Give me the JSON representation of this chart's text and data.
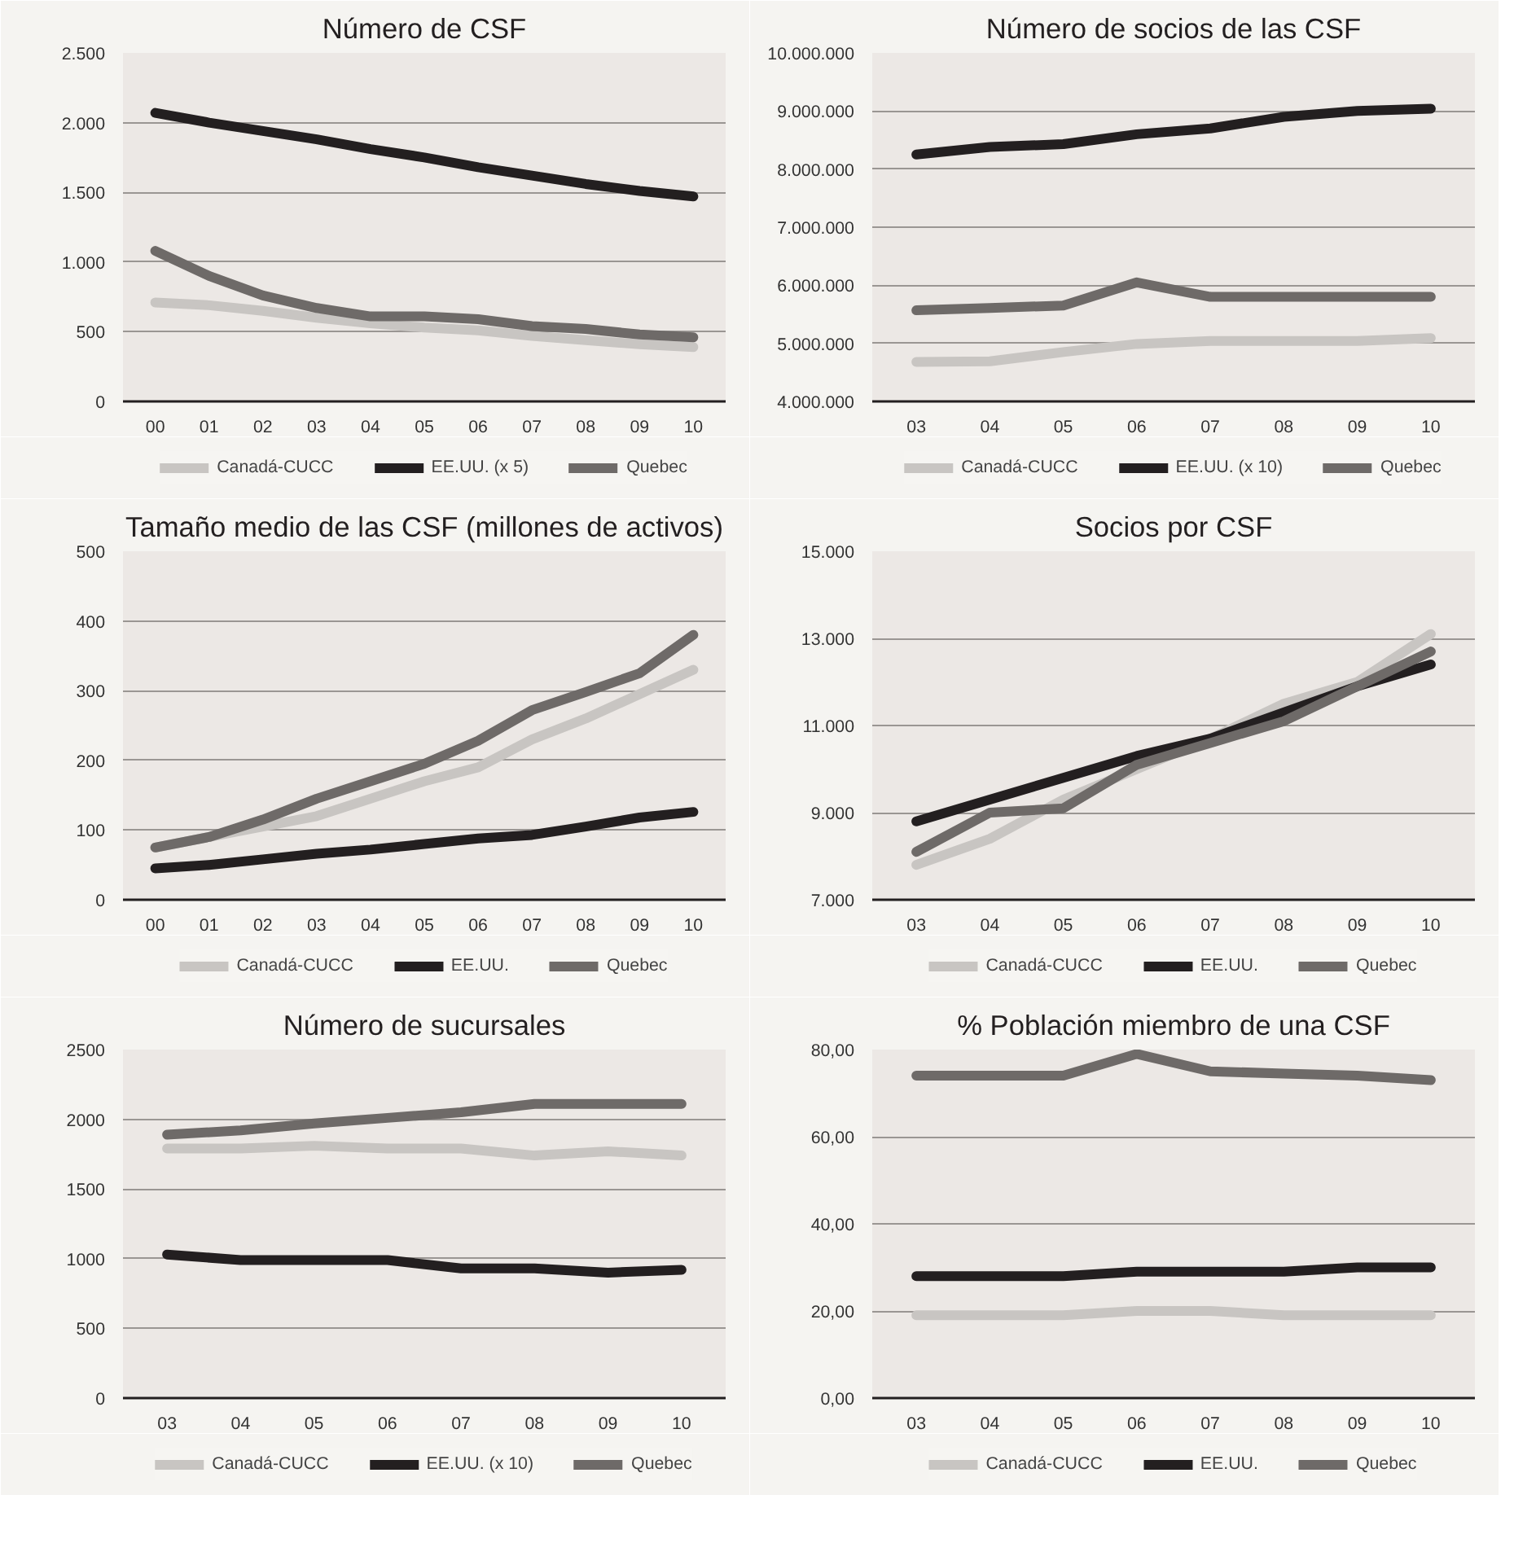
{
  "chart_data": [
    {
      "type": "line",
      "title": "Número de CSF",
      "categories": [
        "00",
        "01",
        "02",
        "03",
        "04",
        "05",
        "06",
        "07",
        "08",
        "09",
        "10"
      ],
      "ylim": [
        0,
        2500
      ],
      "yticks": [
        0,
        500,
        {
          "value": 1000,
          "label": "1.000"
        },
        {
          "value": 1500,
          "label": "1.500"
        },
        {
          "value": 2000,
          "label": "2.000"
        },
        {
          "value": 2500,
          "label": "2.500"
        }
      ],
      "grid": "y",
      "legend": "bottom",
      "line_style": "solid",
      "marker": "none",
      "series": [
        {
          "name": "Canadá-CUCC",
          "color": "#c8c5c2",
          "values": [
            710,
            690,
            650,
            600,
            560,
            530,
            510,
            470,
            440,
            410,
            390
          ]
        },
        {
          "name": "EE.UU. (x 5)",
          "color": "#231f20",
          "values": [
            2070,
            2000,
            1940,
            1880,
            1810,
            1750,
            1680,
            1620,
            1560,
            1510,
            1470
          ]
        },
        {
          "name": "Quebec",
          "color": "#6e6a68",
          "values": [
            1080,
            900,
            760,
            670,
            610,
            610,
            590,
            540,
            520,
            480,
            460
          ]
        }
      ]
    },
    {
      "type": "line",
      "title": "Número de socios de las CSF",
      "categories": [
        "03",
        "04",
        "05",
        "06",
        "07",
        "08",
        "09",
        "10"
      ],
      "ylim": [
        4000000,
        10000000
      ],
      "yticks": [
        {
          "value": 4000000,
          "label": "4.000.000"
        },
        {
          "value": 5000000,
          "label": "5.000.000"
        },
        {
          "value": 6000000,
          "label": "6.000.000"
        },
        {
          "value": 7000000,
          "label": "7.000.000"
        },
        {
          "value": 8000000,
          "label": "8.000.000"
        },
        {
          "value": 9000000,
          "label": "9.000.000"
        },
        {
          "value": 10000000,
          "label": "10.000.000"
        }
      ],
      "grid": "y",
      "legend": "bottom",
      "line_style": "solid",
      "marker": "none",
      "series": [
        {
          "name": "Canadá-CUCC",
          "color": "#c8c5c2",
          "values": [
            4680000,
            4690000,
            4850000,
            4990000,
            5040000,
            5040000,
            5040000,
            5090000
          ]
        },
        {
          "name": "EE.UU. (x 10)",
          "color": "#231f20",
          "values": [
            8250000,
            8380000,
            8430000,
            8600000,
            8700000,
            8900000,
            9000000,
            9040000
          ]
        },
        {
          "name": "Quebec",
          "color": "#6e6a68",
          "values": [
            5570000,
            5610000,
            5650000,
            6050000,
            5800000,
            5800000,
            5800000,
            5800000
          ]
        }
      ]
    },
    {
      "type": "line",
      "title": "Tamaño medio de las CSF (millones de activos)",
      "categories": [
        "00",
        "01",
        "02",
        "03",
        "04",
        "05",
        "06",
        "07",
        "08",
        "09",
        "10"
      ],
      "ylim": [
        0,
        500
      ],
      "yticks": [
        0,
        100,
        200,
        300,
        400,
        500
      ],
      "grid": "y",
      "legend": "bottom",
      "line_style": "solid",
      "marker": "none",
      "series": [
        {
          "name": "Canadá-CUCC",
          "color": "#c8c5c2",
          "values": [
            75,
            90,
            105,
            120,
            145,
            170,
            190,
            230,
            260,
            295,
            330
          ]
        },
        {
          "name": "EE.UU.",
          "color": "#231f20",
          "values": [
            45,
            50,
            58,
            66,
            72,
            80,
            88,
            93,
            105,
            118,
            126
          ]
        },
        {
          "name": "Quebec",
          "color": "#6e6a68",
          "values": [
            75,
            90,
            115,
            145,
            170,
            195,
            228,
            272,
            298,
            325,
            380
          ]
        }
      ]
    },
    {
      "type": "line",
      "title": "Socios por CSF",
      "categories": [
        "03",
        "04",
        "05",
        "06",
        "07",
        "08",
        "09",
        "10"
      ],
      "ylim": [
        7000,
        15000
      ],
      "yticks": [
        {
          "value": 7000,
          "label": "7.000"
        },
        {
          "value": 9000,
          "label": "9.000"
        },
        {
          "value": 11000,
          "label": "11.000"
        },
        {
          "value": 13000,
          "label": "13.000"
        },
        {
          "value": 15000,
          "label": "15.000"
        }
      ],
      "grid": "y",
      "legend": "bottom",
      "line_style": "solid",
      "marker": "none",
      "series": [
        {
          "name": "Canadá-CUCC",
          "color": "#c8c5c2",
          "values": [
            7800,
            8400,
            9300,
            10000,
            10700,
            11500,
            12000,
            13100
          ]
        },
        {
          "name": "EE.UU.",
          "color": "#231f20",
          "values": [
            8800,
            9300,
            9800,
            10300,
            10700,
            11300,
            11900,
            12400
          ]
        },
        {
          "name": "Quebec",
          "color": "#6e6a68",
          "values": [
            8100,
            9000,
            9100,
            10100,
            10600,
            11100,
            11900,
            12700
          ]
        }
      ]
    },
    {
      "type": "line",
      "title": "Número de sucursales",
      "categories": [
        "03",
        "04",
        "05",
        "06",
        "07",
        "08",
        "09",
        "10"
      ],
      "ylim": [
        0,
        2500
      ],
      "yticks": [
        0,
        500,
        1000,
        1500,
        2000,
        2500
      ],
      "grid": "y",
      "legend": "bottom",
      "line_style": "solid",
      "marker": "none",
      "series": [
        {
          "name": "Canadá-CUCC",
          "color": "#c8c5c2",
          "values": [
            1790,
            1790,
            1810,
            1790,
            1790,
            1740,
            1770,
            1740
          ]
        },
        {
          "name": "EE.UU. (x 10)",
          "color": "#231f20",
          "values": [
            1030,
            990,
            990,
            990,
            930,
            930,
            900,
            920
          ]
        },
        {
          "name": "Quebec",
          "color": "#6e6a68",
          "values": [
            1890,
            1920,
            1970,
            2010,
            2050,
            2110,
            2110,
            2110
          ]
        }
      ]
    },
    {
      "type": "line",
      "title": "% Población miembro de una CSF",
      "categories": [
        "03",
        "04",
        "05",
        "06",
        "07",
        "08",
        "09",
        "10"
      ],
      "ylim": [
        0,
        80
      ],
      "yticks": [
        {
          "value": 0,
          "label": "0,00"
        },
        {
          "value": 20,
          "label": "20,00"
        },
        {
          "value": 40,
          "label": "40,00"
        },
        {
          "value": 60,
          "label": "60,00"
        },
        {
          "value": 80,
          "label": "80,00"
        }
      ],
      "grid": "y",
      "legend": "bottom",
      "line_style": "solid",
      "marker": "none",
      "series": [
        {
          "name": "Canadá-CUCC",
          "color": "#c8c5c2",
          "values": [
            19,
            19,
            19,
            20,
            20,
            19,
            19,
            19
          ]
        },
        {
          "name": "EE.UU.",
          "color": "#231f20",
          "values": [
            28,
            28,
            28,
            29,
            29,
            29,
            30,
            30
          ]
        },
        {
          "name": "Quebec",
          "color": "#6e6a68",
          "values": [
            74,
            74,
            74,
            79,
            75,
            74.5,
            74,
            73
          ]
        }
      ]
    }
  ]
}
